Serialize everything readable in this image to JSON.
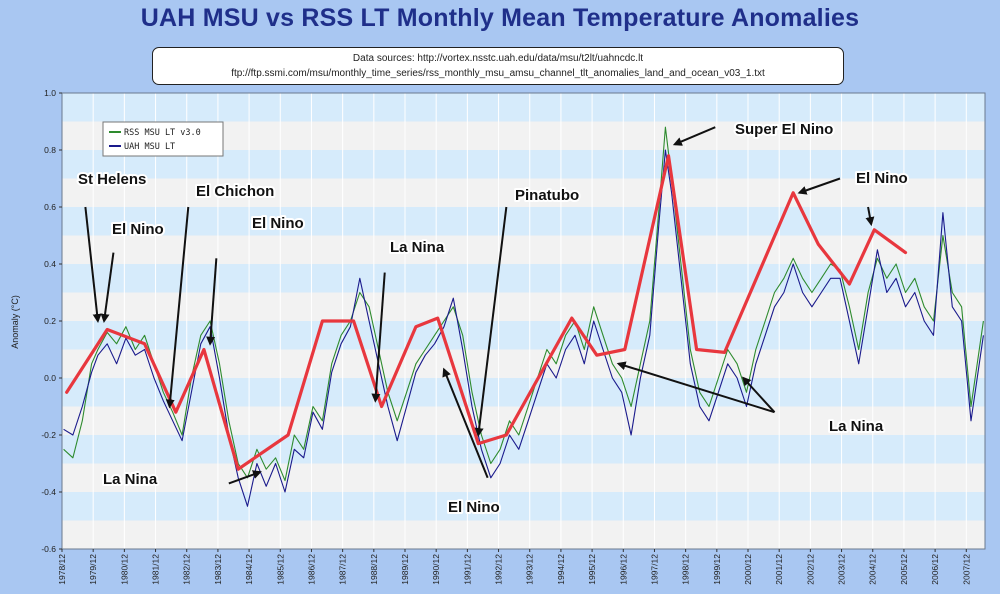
{
  "chart_data": {
    "type": "line",
    "title": "UAH MSU vs RSS LT Monthly Mean Temperature Anomalies",
    "data_sources_line1": "Data sources: http://vortex.nsstc.uah.edu/data/msu/t2lt/uahncdc.lt",
    "data_sources_line2": "ftp://ftp.ssmi.com/msu/monthly_time_series/rss_monthly_msu_amsu_channel_tlt_anomalies_land_and_ocean_v03_1.txt",
    "ylabel": "Anomaly (°C)",
    "xlabel": "",
    "ylim": [
      -0.6,
      1.0
    ],
    "xlim": [
      1978.95,
      2008.55
    ],
    "y_ticks": [
      "-0.6",
      "-0.4",
      "-0.2",
      "0.0",
      "0.2",
      "0.4",
      "0.6",
      "0.8",
      "1.0"
    ],
    "x_ticks": [
      "1978/12",
      "1979/12",
      "1980/12",
      "1981/12",
      "1982/12",
      "1983/12",
      "1984/12",
      "1985/12",
      "1986/12",
      "1987/12",
      "1988/12",
      "1989/12",
      "1990/12",
      "1991/12",
      "1992/12",
      "1993/12",
      "1994/12",
      "1995/12",
      "1996/12",
      "1997/12",
      "1998/12",
      "1999/12",
      "2000/12",
      "2001/12",
      "2002/12",
      "2003/12",
      "2004/12",
      "2005/12",
      "2006/12",
      "2007/12"
    ],
    "grid": true,
    "legend_position": "top-left",
    "colors": {
      "rss": "#2e8b2e",
      "uah": "#1a1a8c",
      "trend": "#e8373e",
      "band_light": "#f2f2f2",
      "band_blue": "#d6ebfb"
    },
    "series": [
      {
        "name": "RSS MSU LT v3.0",
        "points": [
          [
            1979.0,
            -0.25
          ],
          [
            1979.3,
            -0.28
          ],
          [
            1979.6,
            -0.15
          ],
          [
            1979.9,
            0.05
          ],
          [
            1980.1,
            0.1
          ],
          [
            1980.4,
            0.16
          ],
          [
            1980.7,
            0.12
          ],
          [
            1981.0,
            0.18
          ],
          [
            1981.3,
            0.1
          ],
          [
            1981.6,
            0.15
          ],
          [
            1981.9,
            0.05
          ],
          [
            1982.2,
            -0.05
          ],
          [
            1982.5,
            -0.12
          ],
          [
            1982.8,
            -0.2
          ],
          [
            1983.1,
            0.0
          ],
          [
            1983.4,
            0.15
          ],
          [
            1983.7,
            0.2
          ],
          [
            1984.0,
            0.05
          ],
          [
            1984.3,
            -0.15
          ],
          [
            1984.6,
            -0.3
          ],
          [
            1984.9,
            -0.35
          ],
          [
            1985.2,
            -0.25
          ],
          [
            1985.5,
            -0.32
          ],
          [
            1985.8,
            -0.28
          ],
          [
            1986.1,
            -0.36
          ],
          [
            1986.4,
            -0.2
          ],
          [
            1986.7,
            -0.25
          ],
          [
            1987.0,
            -0.1
          ],
          [
            1987.3,
            -0.15
          ],
          [
            1987.6,
            0.05
          ],
          [
            1987.9,
            0.15
          ],
          [
            1988.2,
            0.2
          ],
          [
            1988.5,
            0.3
          ],
          [
            1988.8,
            0.25
          ],
          [
            1989.1,
            0.1
          ],
          [
            1989.4,
            -0.05
          ],
          [
            1989.7,
            -0.15
          ],
          [
            1990.0,
            -0.05
          ],
          [
            1990.3,
            0.05
          ],
          [
            1990.6,
            0.1
          ],
          [
            1990.9,
            0.15
          ],
          [
            1991.2,
            0.2
          ],
          [
            1991.5,
            0.25
          ],
          [
            1991.8,
            0.15
          ],
          [
            1992.1,
            -0.05
          ],
          [
            1992.4,
            -0.2
          ],
          [
            1992.7,
            -0.3
          ],
          [
            1993.0,
            -0.25
          ],
          [
            1993.3,
            -0.15
          ],
          [
            1993.6,
            -0.2
          ],
          [
            1993.9,
            -0.1
          ],
          [
            1994.2,
            0.0
          ],
          [
            1994.5,
            0.1
          ],
          [
            1994.8,
            0.05
          ],
          [
            1995.1,
            0.15
          ],
          [
            1995.4,
            0.2
          ],
          [
            1995.7,
            0.1
          ],
          [
            1996.0,
            0.25
          ],
          [
            1996.3,
            0.15
          ],
          [
            1996.6,
            0.05
          ],
          [
            1996.9,
            0.0
          ],
          [
            1997.2,
            -0.1
          ],
          [
            1997.5,
            0.05
          ],
          [
            1997.8,
            0.2
          ],
          [
            1998.1,
            0.6
          ],
          [
            1998.3,
            0.88
          ],
          [
            1998.5,
            0.7
          ],
          [
            1998.8,
            0.4
          ],
          [
            1999.1,
            0.1
          ],
          [
            1999.4,
            -0.05
          ],
          [
            1999.7,
            -0.1
          ],
          [
            2000.0,
            0.0
          ],
          [
            2000.3,
            0.1
          ],
          [
            2000.6,
            0.05
          ],
          [
            2000.9,
            -0.05
          ],
          [
            2001.2,
            0.1
          ],
          [
            2001.5,
            0.2
          ],
          [
            2001.8,
            0.3
          ],
          [
            2002.1,
            0.35
          ],
          [
            2002.4,
            0.42
          ],
          [
            2002.7,
            0.35
          ],
          [
            2003.0,
            0.3
          ],
          [
            2003.3,
            0.35
          ],
          [
            2003.6,
            0.4
          ],
          [
            2003.9,
            0.38
          ],
          [
            2004.2,
            0.25
          ],
          [
            2004.5,
            0.1
          ],
          [
            2004.8,
            0.3
          ],
          [
            2005.1,
            0.42
          ],
          [
            2005.4,
            0.35
          ],
          [
            2005.7,
            0.4
          ],
          [
            2006.0,
            0.3
          ],
          [
            2006.3,
            0.35
          ],
          [
            2006.6,
            0.25
          ],
          [
            2006.9,
            0.2
          ],
          [
            2007.2,
            0.5
          ],
          [
            2007.5,
            0.3
          ],
          [
            2007.8,
            0.25
          ],
          [
            2008.1,
            -0.1
          ],
          [
            2008.3,
            0.05
          ],
          [
            2008.5,
            0.2
          ]
        ]
      },
      {
        "name": "UAH MSU LT",
        "points": [
          [
            1979.0,
            -0.18
          ],
          [
            1979.3,
            -0.2
          ],
          [
            1979.6,
            -0.1
          ],
          [
            1979.9,
            0.02
          ],
          [
            1980.1,
            0.08
          ],
          [
            1980.4,
            0.12
          ],
          [
            1980.7,
            0.05
          ],
          [
            1981.0,
            0.14
          ],
          [
            1981.3,
            0.08
          ],
          [
            1981.6,
            0.1
          ],
          [
            1981.9,
            0.0
          ],
          [
            1982.2,
            -0.08
          ],
          [
            1982.5,
            -0.15
          ],
          [
            1982.8,
            -0.22
          ],
          [
            1983.1,
            -0.05
          ],
          [
            1983.4,
            0.12
          ],
          [
            1983.7,
            0.18
          ],
          [
            1984.0,
            0.0
          ],
          [
            1984.3,
            -0.2
          ],
          [
            1984.6,
            -0.35
          ],
          [
            1984.9,
            -0.45
          ],
          [
            1985.2,
            -0.3
          ],
          [
            1985.5,
            -0.38
          ],
          [
            1985.8,
            -0.3
          ],
          [
            1986.1,
            -0.4
          ],
          [
            1986.4,
            -0.25
          ],
          [
            1986.7,
            -0.28
          ],
          [
            1987.0,
            -0.12
          ],
          [
            1987.3,
            -0.18
          ],
          [
            1987.6,
            0.02
          ],
          [
            1987.9,
            0.12
          ],
          [
            1988.2,
            0.18
          ],
          [
            1988.5,
            0.35
          ],
          [
            1988.8,
            0.2
          ],
          [
            1989.1,
            0.05
          ],
          [
            1989.4,
            -0.1
          ],
          [
            1989.7,
            -0.22
          ],
          [
            1990.0,
            -0.1
          ],
          [
            1990.3,
            0.02
          ],
          [
            1990.6,
            0.08
          ],
          [
            1990.9,
            0.12
          ],
          [
            1991.2,
            0.18
          ],
          [
            1991.5,
            0.28
          ],
          [
            1991.8,
            0.1
          ],
          [
            1992.1,
            -0.1
          ],
          [
            1992.4,
            -0.25
          ],
          [
            1992.7,
            -0.35
          ],
          [
            1993.0,
            -0.3
          ],
          [
            1993.3,
            -0.2
          ],
          [
            1993.6,
            -0.25
          ],
          [
            1993.9,
            -0.15
          ],
          [
            1994.2,
            -0.05
          ],
          [
            1994.5,
            0.05
          ],
          [
            1994.8,
            0.0
          ],
          [
            1995.1,
            0.1
          ],
          [
            1995.4,
            0.15
          ],
          [
            1995.7,
            0.05
          ],
          [
            1996.0,
            0.2
          ],
          [
            1996.3,
            0.1
          ],
          [
            1996.6,
            0.0
          ],
          [
            1996.9,
            -0.05
          ],
          [
            1997.2,
            -0.2
          ],
          [
            1997.5,
            0.0
          ],
          [
            1997.8,
            0.15
          ],
          [
            1998.1,
            0.55
          ],
          [
            1998.3,
            0.8
          ],
          [
            1998.5,
            0.65
          ],
          [
            1998.8,
            0.35
          ],
          [
            1999.1,
            0.05
          ],
          [
            1999.4,
            -0.1
          ],
          [
            1999.7,
            -0.15
          ],
          [
            2000.0,
            -0.05
          ],
          [
            2000.3,
            0.05
          ],
          [
            2000.6,
            0.0
          ],
          [
            2000.9,
            -0.1
          ],
          [
            2001.2,
            0.05
          ],
          [
            2001.5,
            0.15
          ],
          [
            2001.8,
            0.25
          ],
          [
            2002.1,
            0.3
          ],
          [
            2002.4,
            0.4
          ],
          [
            2002.7,
            0.3
          ],
          [
            2003.0,
            0.25
          ],
          [
            2003.3,
            0.3
          ],
          [
            2003.6,
            0.35
          ],
          [
            2003.9,
            0.35
          ],
          [
            2004.2,
            0.2
          ],
          [
            2004.5,
            0.05
          ],
          [
            2004.8,
            0.25
          ],
          [
            2005.1,
            0.45
          ],
          [
            2005.4,
            0.3
          ],
          [
            2005.7,
            0.35
          ],
          [
            2006.0,
            0.25
          ],
          [
            2006.3,
            0.3
          ],
          [
            2006.6,
            0.2
          ],
          [
            2006.9,
            0.15
          ],
          [
            2007.2,
            0.58
          ],
          [
            2007.5,
            0.25
          ],
          [
            2007.8,
            0.2
          ],
          [
            2008.1,
            -0.15
          ],
          [
            2008.3,
            0.0
          ],
          [
            2008.5,
            0.15
          ]
        ]
      }
    ],
    "trend_line": [
      [
        1979.1,
        -0.05
      ],
      [
        1980.4,
        0.17
      ],
      [
        1981.6,
        0.12
      ],
      [
        1982.6,
        -0.12
      ],
      [
        1983.5,
        0.1
      ],
      [
        1984.6,
        -0.32
      ],
      [
        1986.2,
        -0.2
      ],
      [
        1987.3,
        0.2
      ],
      [
        1988.3,
        0.2
      ],
      [
        1989.2,
        -0.1
      ],
      [
        1990.3,
        0.18
      ],
      [
        1991.0,
        0.21
      ],
      [
        1992.3,
        -0.23
      ],
      [
        1993.2,
        -0.2
      ],
      [
        1995.3,
        0.21
      ],
      [
        1996.1,
        0.08
      ],
      [
        1997.0,
        0.1
      ],
      [
        1998.4,
        0.78
      ],
      [
        1999.3,
        0.1
      ],
      [
        2000.2,
        0.09
      ],
      [
        2002.4,
        0.65
      ],
      [
        2003.2,
        0.47
      ],
      [
        2004.2,
        0.33
      ],
      [
        2005.0,
        0.52
      ],
      [
        2006.0,
        0.44
      ]
    ],
    "annotations": [
      {
        "label": "St Helens",
        "arrow_from": [
          1979.7,
          0.6
        ],
        "arrow_to": [
          1980.1,
          0.2
        ]
      },
      {
        "label": "El Nino",
        "arrow_from": [
          1980.6,
          0.44
        ],
        "arrow_to": [
          1980.3,
          0.2
        ]
      },
      {
        "label": "El Chichon",
        "arrow_from": [
          1983.0,
          0.6
        ],
        "arrow_to": [
          1982.4,
          -0.1
        ]
      },
      {
        "label": "El Nino",
        "arrow_from": [
          1983.9,
          0.42
        ],
        "arrow_to": [
          1983.7,
          0.12
        ]
      },
      {
        "label": "La Nina",
        "arrow_from": [
          1984.3,
          -0.37
        ],
        "arrow_to": [
          1985.3,
          -0.33
        ]
      },
      {
        "label": "La Nina",
        "arrow_from": [
          1989.3,
          0.37
        ],
        "arrow_to": [
          1989.0,
          -0.08
        ]
      },
      {
        "label": "Pinatubo",
        "arrow_from": [
          1993.2,
          0.6
        ],
        "arrow_to": [
          1992.3,
          -0.2
        ]
      },
      {
        "label": "El Nino",
        "arrow_from": [
          1992.6,
          -0.35
        ],
        "arrow_to": [
          1991.2,
          0.03
        ]
      },
      {
        "label": "Super El Nino",
        "arrow_from": [
          1999.9,
          0.88
        ],
        "arrow_to": [
          1998.6,
          0.82
        ]
      },
      {
        "label": "El Nino",
        "arrow_from": [
          2003.9,
          0.7
        ],
        "arrow_to": [
          2002.6,
          0.65
        ]
      },
      {
        "label": "El Nino",
        "arrow_from": [
          2004.8,
          0.6
        ],
        "arrow_to": [
          2004.9,
          0.54
        ]
      },
      {
        "label": "La Nina",
        "arrow_from": [
          2001.8,
          -0.12
        ],
        "arrow_to": [
          1996.8,
          0.05
        ]
      },
      {
        "label": "La Nina",
        "arrow_from": [
          2001.8,
          -0.12
        ],
        "arrow_to": [
          2000.8,
          0.0
        ]
      }
    ]
  }
}
